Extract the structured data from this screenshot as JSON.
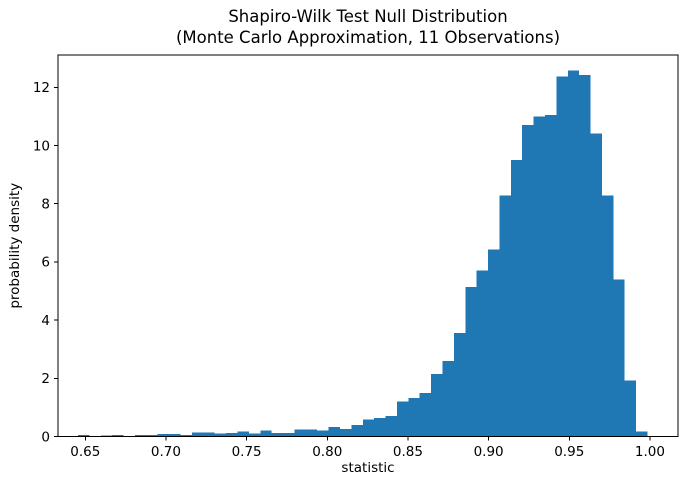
{
  "chart_data": {
    "type": "bar",
    "subtype": "histogram",
    "title": [
      "Shapiro-Wilk Test Null Distribution",
      "(Monte Carlo Approximation, 11 Observations)"
    ],
    "xlabel": "statistic",
    "ylabel": "probability density",
    "bin_start": 0.6455,
    "bin_width": 0.00706,
    "n_bins": 50,
    "heights": [
      0.05,
      0.0,
      0.04,
      0.05,
      0.02,
      0.05,
      0.06,
      0.09,
      0.08,
      0.06,
      0.13,
      0.13,
      0.1,
      0.12,
      0.18,
      0.11,
      0.2,
      0.12,
      0.12,
      0.24,
      0.24,
      0.21,
      0.32,
      0.26,
      0.4,
      0.58,
      0.63,
      0.7,
      1.21,
      1.32,
      1.5,
      2.15,
      2.6,
      3.55,
      5.13,
      5.7,
      6.42,
      8.28,
      9.51,
      10.71,
      11.0,
      11.05,
      12.37,
      12.58,
      12.43,
      10.42,
      8.28,
      5.39,
      1.92,
      0.17
    ],
    "x_ticks": [
      0.65,
      0.7,
      0.75,
      0.8,
      0.85,
      0.9,
      0.95,
      1.0
    ],
    "x_tick_labels": [
      "0.65",
      "0.70",
      "0.75",
      "0.80",
      "0.85",
      "0.90",
      "0.95",
      "1.00"
    ],
    "y_ticks": [
      0,
      2,
      4,
      6,
      8,
      10,
      12
    ],
    "y_tick_labels": [
      "0",
      "2",
      "4",
      "6",
      "8",
      "10",
      "12"
    ],
    "xlim": [
      0.6331,
      1.0174
    ],
    "ylim": [
      0,
      13.11
    ],
    "grid": false,
    "legend": null,
    "bar_color": "#1f77b4",
    "axis_color": "#000000",
    "background_color": "#ffffff"
  }
}
